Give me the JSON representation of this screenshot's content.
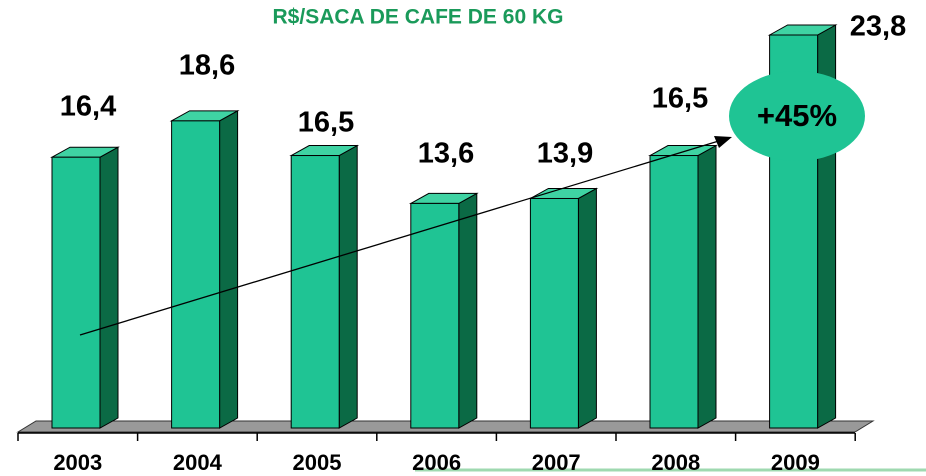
{
  "chart_data": {
    "type": "bar3d",
    "title": "R$/SACA DE CAFE DE 60 KG",
    "categories": [
      "2003",
      "2004",
      "2005",
      "2006",
      "2007",
      "2008",
      "2009"
    ],
    "values": [
      16.4,
      18.6,
      16.5,
      13.6,
      13.9,
      16.5,
      23.8
    ],
    "value_labels": [
      "16,4",
      "18,6",
      "16,5",
      "13,6",
      "13,9",
      "16,5",
      "23,8"
    ],
    "color": "#1fc494",
    "annotation": "+45%"
  }
}
